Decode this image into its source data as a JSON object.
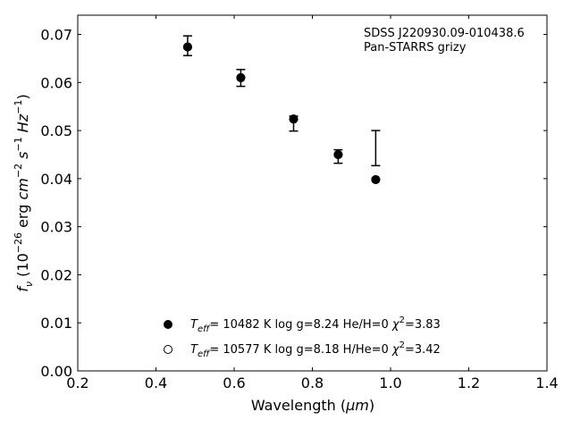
{
  "chart_data": {
    "type": "scatter",
    "xlabel_prefix": "Wavelength (",
    "xlabel_unit": "μm",
    "xlabel_suffix": ")",
    "ylabel_main": "f",
    "ylabel_sub": "ν",
    "ylabel_text1": " (10",
    "ylabel_exp1": "−26",
    "ylabel_text2": " erg ",
    "ylabel_cm": "cm",
    "ylabel_exp2": "−2",
    "ylabel_s": " s",
    "ylabel_exp3": "−1",
    "ylabel_hz": " Hz",
    "ylabel_exp4": "−1",
    "ylabel_close": ")",
    "xlim": [
      0.2,
      1.4
    ],
    "ylim": [
      0.0,
      0.074
    ],
    "xticks": [
      "0.2",
      "0.4",
      "0.6",
      "0.8",
      "1.0",
      "1.2",
      "1.4"
    ],
    "yticks": [
      "0.00",
      "0.01",
      "0.02",
      "0.03",
      "0.04",
      "0.05",
      "0.06",
      "0.07"
    ],
    "annotation_line1": "SDSS J220930.09-010438.6",
    "annotation_line2": "Pan-STARRS grizy",
    "observed": [
      {
        "x": 0.481,
        "y": 0.0677,
        "ylow": 0.0656,
        "yhigh": 0.0697
      },
      {
        "x": 0.617,
        "y": 0.0609,
        "ylow": 0.0592,
        "yhigh": 0.0627
      },
      {
        "x": 0.752,
        "y": 0.0526,
        "ylow": 0.0499,
        "yhigh": 0.053
      },
      {
        "x": 0.866,
        "y": 0.0447,
        "ylow": 0.0432,
        "yhigh": 0.046
      },
      {
        "x": 0.962,
        "y": 0.0463,
        "ylow": 0.0427,
        "yhigh": 0.05
      }
    ],
    "series": [
      {
        "marker": "filled",
        "points": [
          {
            "x": 0.481,
            "y": 0.0674
          },
          {
            "x": 0.617,
            "y": 0.061
          },
          {
            "x": 0.752,
            "y": 0.0524
          },
          {
            "x": 0.866,
            "y": 0.045
          },
          {
            "x": 0.962,
            "y": 0.0398
          }
        ]
      },
      {
        "marker": "open",
        "points": [
          {
            "x": 0.481,
            "y": 0.0674
          },
          {
            "x": 0.617,
            "y": 0.061
          },
          {
            "x": 0.752,
            "y": 0.0524
          },
          {
            "x": 0.866,
            "y": 0.045
          },
          {
            "x": 0.962,
            "y": 0.0398
          }
        ]
      }
    ],
    "legend": [
      {
        "marker": "filled",
        "teff_sym": "T",
        "teff_sub": "eff",
        "text": "= 10482 K  log g=8.24  He/H=0  ",
        "chi_sym": "χ",
        "chi_exp": "2",
        "chi_val": "=3.83"
      },
      {
        "marker": "open",
        "teff_sym": "T",
        "teff_sub": "eff",
        "text": "= 10577 K  log g=8.18  H/He=0  ",
        "chi_sym": "χ",
        "chi_exp": "2",
        "chi_val": "=3.42"
      }
    ],
    "legend_position": "lower-center",
    "grid": false
  }
}
